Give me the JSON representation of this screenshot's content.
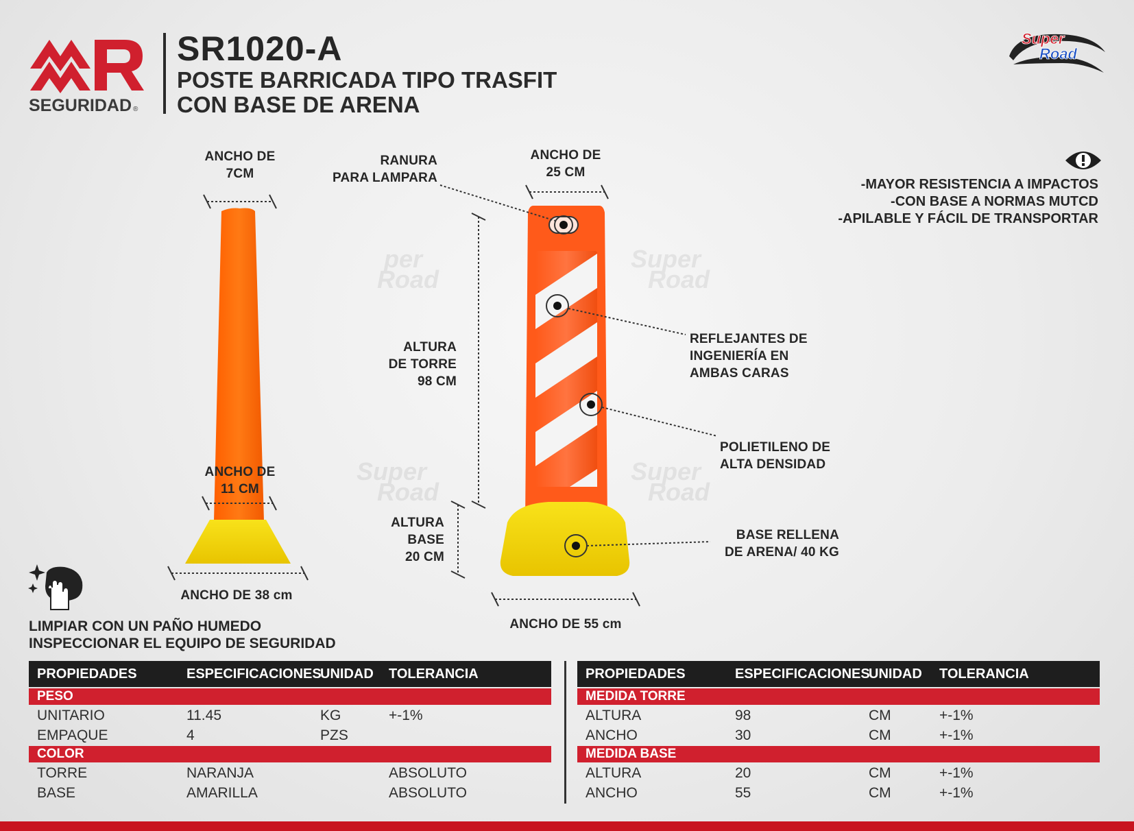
{
  "header": {
    "brand": "MR",
    "brand_sub": "SEGURIDAD",
    "model": "SR1020-A",
    "subtitle_line1": "POSTE BARRICADA TIPO TRASFIT",
    "subtitle_line2": "CON BASE DE ARENA",
    "partner_logo_line1": "Super",
    "partner_logo_line2": "Road"
  },
  "features": [
    "-MAYOR RESISTENCIA A IMPACTOS",
    "-CON BASE A NORMAS MUTCD",
    "-APILABLE Y FÁCIL DE TRANSPORTAR"
  ],
  "side_view": {
    "top_width_line1": "ANCHO DE",
    "top_width_line2": "7CM",
    "bottom_width_line1": "ANCHO DE",
    "bottom_width_line2": "11 CM",
    "base_width": "ANCHO DE 38 cm"
  },
  "front_view": {
    "slot_line1": "RANURA",
    "slot_line2": "PARA LAMPARA",
    "width_line1": "ANCHO DE",
    "width_line2": "25 CM",
    "tower_height_line1": "ALTURA",
    "tower_height_line2": "DE TORRE",
    "tower_height_line3": "98 CM",
    "base_height_line1": "ALTURA",
    "base_height_line2": "BASE",
    "base_height_line3": "20 CM",
    "base_width": "ANCHO DE 55 cm",
    "reflective_line1": "REFLEJANTES DE",
    "reflective_line2": "INGENIERÍA EN",
    "reflective_line3": "AMBAS CARAS",
    "material_line1": "POLIETILENO DE",
    "material_line2": "ALTA DENSIDAD",
    "base_fill_line1": "BASE RELLENA",
    "base_fill_line2": "DE ARENA/ 40 KG"
  },
  "care": {
    "line1": "LIMPIAR CON UN PAÑO HUMEDO",
    "line2": "INSPECCIONAR EL EQUIPO DE SEGURIDAD"
  },
  "table_left": {
    "headers": [
      "PROPIEDADES",
      "ESPECIFICACIONES",
      "UNIDAD",
      "TOLERANCIA"
    ],
    "sections": [
      {
        "title": "PESO",
        "rows": [
          [
            "UNITARIO",
            "11.45",
            "KG",
            "+-1%"
          ],
          [
            "EMPAQUE",
            "4",
            "PZS",
            ""
          ]
        ]
      },
      {
        "title": "COLOR",
        "rows": [
          [
            "TORRE",
            "NARANJA",
            "",
            "ABSOLUTO"
          ],
          [
            "BASE",
            "AMARILLA",
            "",
            "ABSOLUTO"
          ]
        ]
      }
    ]
  },
  "table_right": {
    "headers": [
      "PROPIEDADES",
      "ESPECIFICACIONES",
      "UNIDAD",
      "TOLERANCIA"
    ],
    "sections": [
      {
        "title": "MEDIDA TORRE",
        "rows": [
          [
            "ALTURA",
            "98",
            "CM",
            "+-1%"
          ],
          [
            "ANCHO",
            "30",
            "CM",
            "+-1%"
          ]
        ]
      },
      {
        "title": "MEDIDA BASE",
        "rows": [
          [
            "ALTURA",
            "20",
            "CM",
            "+-1%"
          ],
          [
            "ANCHO",
            "55",
            "CM",
            "+-1%"
          ]
        ]
      }
    ]
  },
  "colors": {
    "orange": "#ff6a0a",
    "yellow": "#f5d80c",
    "red": "#d0202e",
    "dark": "#1e1e1e"
  }
}
